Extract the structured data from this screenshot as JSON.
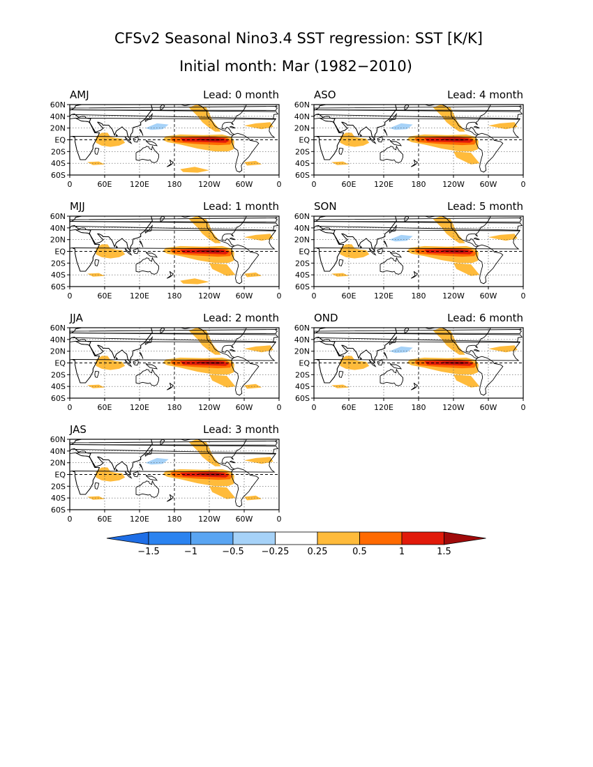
{
  "figure": {
    "title": "CFSv2 Seasonal Nino3.4 SST regression: SST [K/K]",
    "subtitle": "Initial month: Mar (1982−2010)"
  },
  "axes": {
    "lat_labels": [
      "60N",
      "40N",
      "20N",
      "EQ",
      "20S",
      "40S",
      "60S"
    ],
    "lon_labels": [
      "0",
      "60E",
      "120E",
      "180",
      "120W",
      "60W",
      "0"
    ]
  },
  "panels": [
    {
      "season": "AMJ",
      "lead": "Lead: 0 month",
      "lead_months": 0
    },
    {
      "season": "MJJ",
      "lead": "Lead: 1 month",
      "lead_months": 1
    },
    {
      "season": "JJA",
      "lead": "Lead: 2 month",
      "lead_months": 2
    },
    {
      "season": "JAS",
      "lead": "Lead: 3 month",
      "lead_months": 3
    },
    {
      "season": "ASO",
      "lead": "Lead: 4 month",
      "lead_months": 4
    },
    {
      "season": "SON",
      "lead": "Lead: 5 month",
      "lead_months": 5
    },
    {
      "season": "OND",
      "lead": "Lead: 6 month",
      "lead_months": 6
    }
  ],
  "colorbar": {
    "labels": [
      "−1.5",
      "−1",
      "−0.5",
      "−0.25",
      "0.25",
      "0.5",
      "1",
      "1.5"
    ],
    "colors": [
      "#1e6ee6",
      "#2b83f0",
      "#5aa5f2",
      "#a6d2f8",
      "#ffffff",
      "#ffbb3b",
      "#ff6a00",
      "#e11a0a",
      "#a00a0a"
    ]
  },
  "map_colors": {
    "warm_weak": "#ffbb3b",
    "warm_mid": "#ff6a00",
    "warm_strong": "#e11a0a",
    "warm_max": "#a00a0a",
    "cool_weak": "#a6d2f8"
  }
}
